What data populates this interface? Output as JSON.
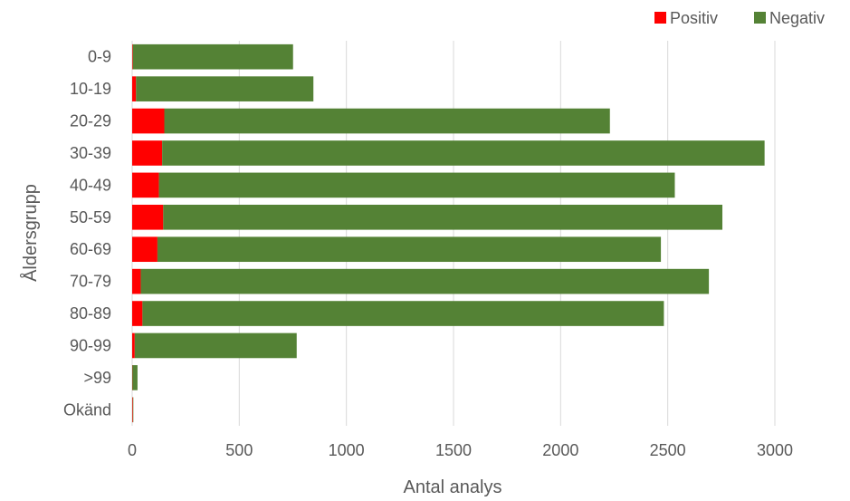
{
  "chart_data": {
    "type": "bar",
    "orientation": "horizontal",
    "stacked": true,
    "categories": [
      "0-9",
      "10-19",
      "20-29",
      "30-39",
      "40-49",
      "50-59",
      "60-69",
      "70-79",
      "80-89",
      "90-99",
      ">99",
      "Okänd"
    ],
    "series": [
      {
        "name": "Positiv",
        "color": "#FF0000",
        "values": [
          3,
          18,
          150,
          140,
          125,
          145,
          118,
          40,
          48,
          12,
          1,
          3
        ]
      },
      {
        "name": "Negativ",
        "color": "#548235",
        "values": [
          748,
          828,
          2080,
          2812,
          2408,
          2610,
          2350,
          2652,
          2434,
          756,
          24,
          1
        ]
      }
    ],
    "xlabel": "Antal analys",
    "ylabel": "Åldersgrupp",
    "xlim": [
      0,
      3000
    ],
    "xticks": [
      0,
      500,
      1000,
      1500,
      2000,
      2500,
      3000
    ],
    "grid": "vertical",
    "legend_position": "top-right"
  }
}
